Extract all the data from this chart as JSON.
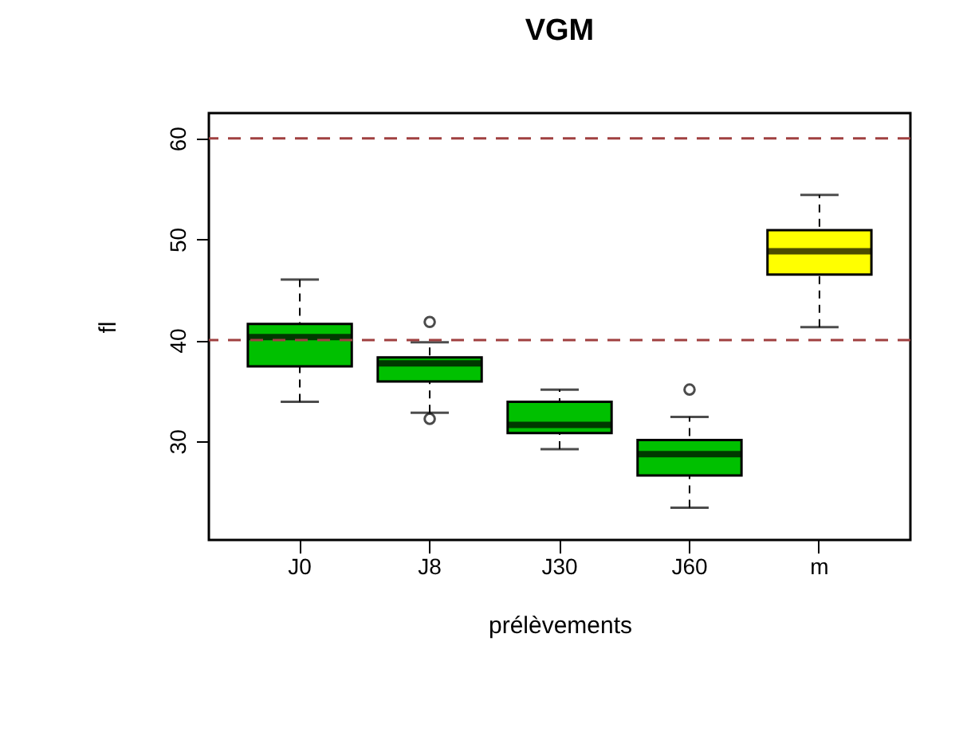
{
  "chart_data": {
    "type": "box",
    "title": "VGM",
    "xlabel": "prélèvements",
    "ylabel": "fl",
    "categories": [
      "J0",
      "J8",
      "J30",
      "J60",
      "m"
    ],
    "colors": [
      "#00c000",
      "#00c000",
      "#00c000",
      "#00c000",
      "#ffff00"
    ],
    "boxes": [
      {
        "low": 33.9,
        "q1": 37.4,
        "median": 40.3,
        "q3": 41.6,
        "high": 46.0
      },
      {
        "low": 32.8,
        "q1": 35.9,
        "median": 37.7,
        "q3": 38.3,
        "high": 39.8,
        "outliers": [
          41.8,
          32.2
        ]
      },
      {
        "low": 29.2,
        "q1": 30.8,
        "median": 31.6,
        "q3": 33.9,
        "high": 35.1
      },
      {
        "low": 23.4,
        "q1": 26.6,
        "median": 28.7,
        "q3": 30.1,
        "high": 32.4,
        "outliers": [
          35.1
        ]
      },
      {
        "low": 41.3,
        "q1": 46.5,
        "median": 48.8,
        "q3": 50.9,
        "high": 54.4
      }
    ],
    "ylim": [
      20.2,
      62.5
    ],
    "yticks": [
      30,
      40,
      50,
      60
    ],
    "grid": false,
    "ref_lines": [
      {
        "axis": "y",
        "value": 40,
        "color": "#a04040",
        "line_style": "dashed"
      },
      {
        "axis": "y",
        "value": 60,
        "color": "#a04040",
        "line_style": "dashed"
      }
    ]
  }
}
